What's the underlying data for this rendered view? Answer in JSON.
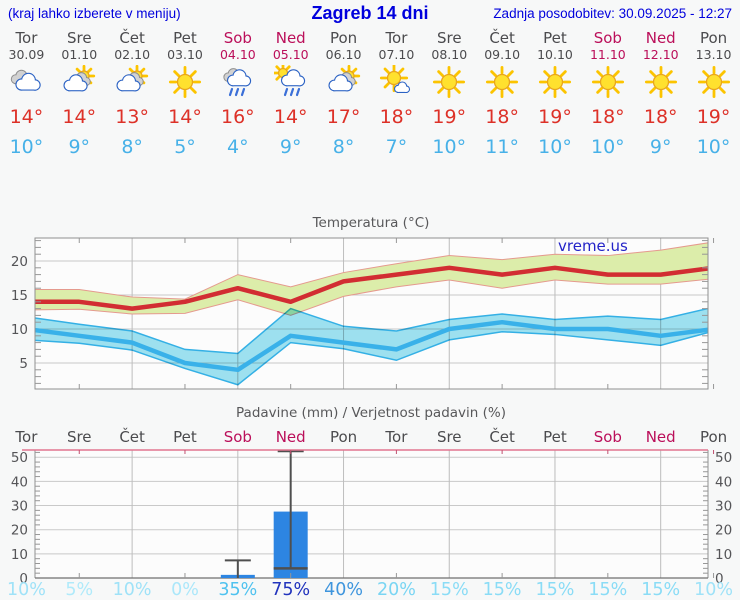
{
  "header": {
    "left_note": "(kraj lahko izberete v meniju)",
    "title": "Zagreb 14 dni",
    "updated": "Zadnja posodobitev: 30.09.2025 - 12:27"
  },
  "colors": {
    "header_text": "#0000dd",
    "day_label": "#4b4b4e",
    "weekend_label": "#bb0f5a",
    "tmax_text": "#dd3128",
    "tmin_text": "#47b1e8",
    "chart_title": "#58585a",
    "axis_label": "#555558",
    "tmax_line": "#d22d32",
    "tmax_band": "#dcedaa",
    "tmax_band_edge": "#e59a8e",
    "tmin_line": "#39b1e9",
    "tmin_band": "#9fe3f2",
    "tmin_band_edge": "#34b2e8",
    "bar_fill": "#2d85e2",
    "whisker": "#4f4f4f",
    "precip_top_border": "#e2758f",
    "watermark": "#2424c8"
  },
  "days": [
    {
      "name": "Tor",
      "date": "30.09",
      "weekend": false,
      "icon": "cloudy",
      "tmax": "14°",
      "tmin": "10°",
      "prob": "10%",
      "prob_color": "#9fe2f8"
    },
    {
      "name": "Sre",
      "date": "01.10",
      "weekend": false,
      "icon": "partly",
      "tmax": "14°",
      "tmin": "9°",
      "prob": "5%",
      "prob_color": "#b0eafa"
    },
    {
      "name": "Čet",
      "date": "02.10",
      "weekend": false,
      "icon": "partly",
      "tmax": "13°",
      "tmin": "8°",
      "prob": "10%",
      "prob_color": "#9fe2f8"
    },
    {
      "name": "Pet",
      "date": "03.10",
      "weekend": false,
      "icon": "sunny",
      "tmax": "14°",
      "tmin": "5°",
      "prob": "0%",
      "prob_color": "#abe7fa"
    },
    {
      "name": "Sob",
      "date": "04.10",
      "weekend": true,
      "icon": "rain",
      "tmax": "16°",
      "tmin": "4°",
      "prob": "35%",
      "prob_color": "#4fc2ef"
    },
    {
      "name": "Ned",
      "date": "05.10",
      "weekend": true,
      "icon": "sun-rain",
      "tmax": "14°",
      "tmin": "9°",
      "prob": "75%",
      "prob_color": "#2133bd"
    },
    {
      "name": "Pon",
      "date": "06.10",
      "weekend": false,
      "icon": "partly",
      "tmax": "17°",
      "tmin": "8°",
      "prob": "40%",
      "prob_color": "#3e95dd"
    },
    {
      "name": "Tor",
      "date": "07.10",
      "weekend": false,
      "icon": "mostly-sunny",
      "tmax": "18°",
      "tmin": "7°",
      "prob": "20%",
      "prob_color": "#79d5f3"
    },
    {
      "name": "Sre",
      "date": "08.10",
      "weekend": false,
      "icon": "sunny",
      "tmax": "19°",
      "tmin": "10°",
      "prob": "15%",
      "prob_color": "#8adcf6"
    },
    {
      "name": "Čet",
      "date": "09.10",
      "weekend": false,
      "icon": "sunny",
      "tmax": "18°",
      "tmin": "11°",
      "prob": "15%",
      "prob_color": "#8adcf6"
    },
    {
      "name": "Pet",
      "date": "10.10",
      "weekend": false,
      "icon": "sunny",
      "tmax": "19°",
      "tmin": "10°",
      "prob": "15%",
      "prob_color": "#8adcf6"
    },
    {
      "name": "Sob",
      "date": "11.10",
      "weekend": true,
      "icon": "sunny",
      "tmax": "18°",
      "tmin": "10°",
      "prob": "15%",
      "prob_color": "#8adcf6"
    },
    {
      "name": "Ned",
      "date": "12.10",
      "weekend": true,
      "icon": "sunny",
      "tmax": "18°",
      "tmin": "9°",
      "prob": "15%",
      "prob_color": "#8adcf6"
    },
    {
      "name": "Pon",
      "date": "13.10",
      "weekend": false,
      "icon": "sunny",
      "tmax": "19°",
      "tmin": "10°",
      "prob": "10%",
      "prob_color": "#9fe2f8"
    }
  ],
  "chart_data": [
    {
      "type": "line",
      "title": "Temperatura (°C)",
      "watermark": "vreme.us",
      "categories": [
        "Tor",
        "Sre",
        "Čet",
        "Pet",
        "Sob",
        "Ned",
        "Pon",
        "Tor",
        "Sre",
        "Čet",
        "Pet",
        "Sob",
        "Ned",
        "Pon"
      ],
      "series": [
        {
          "name": "tmax",
          "color": "#d22d32",
          "values": [
            14,
            14,
            13,
            14,
            16,
            14,
            17,
            18,
            19,
            18,
            19,
            18,
            18,
            19
          ]
        },
        {
          "name": "tmax_range_upper",
          "values": [
            15.8,
            15.8,
            14.7,
            14.4,
            18.0,
            16.2,
            18.3,
            19.6,
            20.8,
            20.2,
            21.0,
            20.8,
            21.6,
            22.8
          ]
        },
        {
          "name": "tmax_range_lower",
          "values": [
            12.8,
            12.9,
            12.2,
            12.3,
            14.3,
            12.0,
            14.8,
            16.2,
            17.2,
            16.0,
            17.2,
            16.6,
            16.6,
            17.4
          ]
        },
        {
          "name": "tmin",
          "color": "#39b1e9",
          "values": [
            10,
            9,
            8,
            5,
            4,
            9,
            8,
            7,
            10,
            11,
            10,
            10,
            9,
            10
          ]
        },
        {
          "name": "tmin_range_upper",
          "values": [
            11.8,
            10.7,
            9.7,
            7.0,
            6.4,
            13.0,
            10.4,
            9.7,
            11.4,
            12.2,
            11.4,
            11.9,
            11.4,
            13.2
          ]
        },
        {
          "name": "tmin_range_lower",
          "values": [
            8.4,
            7.9,
            6.9,
            4.2,
            1.8,
            8.0,
            7.1,
            5.4,
            8.4,
            9.6,
            9.2,
            8.4,
            7.6,
            9.7
          ]
        }
      ],
      "ylim": [
        1,
        23.5
      ],
      "yticks": [
        5,
        10,
        15,
        20
      ],
      "grid": true,
      "legend": "none"
    },
    {
      "type": "bar",
      "title": "Padavine (mm) / Verjetnost padavin (%)",
      "categories": [
        "Tor",
        "Sre",
        "Čet",
        "Pet",
        "Sob",
        "Ned",
        "Pon",
        "Tor",
        "Sre",
        "Čet",
        "Pet",
        "Sob",
        "Ned",
        "Pon"
      ],
      "values": [
        0,
        0,
        0,
        0,
        1.3,
        27.5,
        0,
        0,
        0,
        0,
        0,
        0,
        0,
        0
      ],
      "whiskers": [
        null,
        null,
        null,
        null,
        {
          "low": 0,
          "high": 7.3
        },
        {
          "low": 4,
          "high": 52.5
        },
        null,
        null,
        null,
        null,
        null,
        null,
        null,
        null
      ],
      "probabilities_pct": [
        10,
        5,
        10,
        0,
        35,
        75,
        40,
        20,
        15,
        15,
        15,
        15,
        15,
        10
      ],
      "ylim": [
        0,
        53
      ],
      "yticks": [
        0,
        10,
        20,
        30,
        40,
        50
      ],
      "grid": true,
      "legend": "none"
    }
  ]
}
